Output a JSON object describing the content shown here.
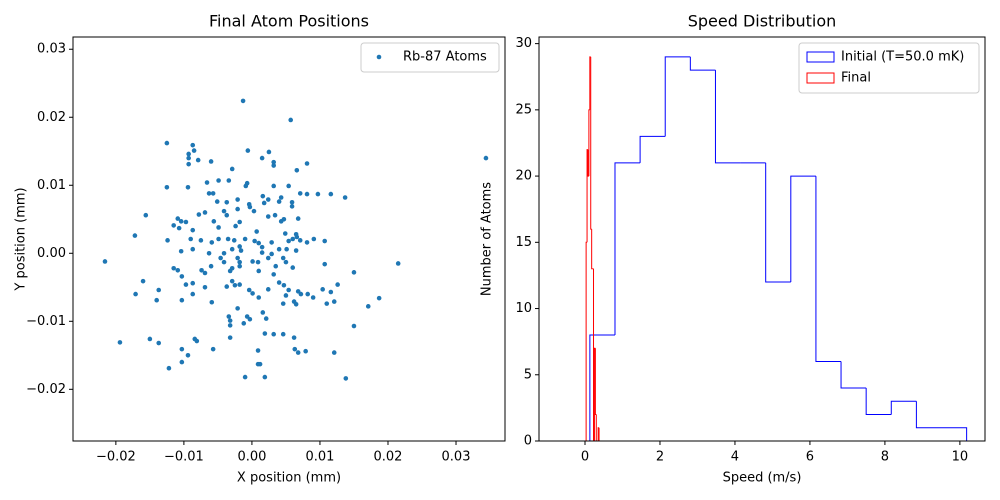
{
  "chart_data": [
    {
      "type": "scatter",
      "title": "Final Atom Positions",
      "xlabel": "X position (mm)",
      "ylabel": "Y position (mm)",
      "xlim": [
        -0.0263,
        0.0372
      ],
      "ylim": [
        -0.0276,
        0.0318
      ],
      "xticks": [
        {
          "value": -0.02,
          "label": "−0.02"
        },
        {
          "value": -0.01,
          "label": "−0.01"
        },
        {
          "value": 0,
          "label": "0.00"
        },
        0.01,
        0.02,
        0.03
      ],
      "yticks": [
        {
          "value": -0.02,
          "label": "−0.02"
        },
        {
          "value": -0.01,
          "label": "−0.01"
        },
        {
          "value": 0,
          "label": "0.00"
        },
        0.01,
        0.02,
        0.03
      ],
      "legend": "upper right",
      "series": [
        {
          "name": "Rb-87 Atoms",
          "color": "#1f77b4",
          "x": [
            -0.0013,
            0.0057,
            -0.0125,
            -0.0087,
            -0.0085,
            -0.0006,
            0.0025,
            -0.0093,
            -0.0093,
            -0.0093,
            0.0344,
            -0.0079,
            -0.006,
            0.0015,
            0.0032,
            0.0032,
            0.0081,
            -0.0029,
            0.0066,
            -0.0049,
            -0.0066,
            -0.0034,
            -0.0007,
            -0.0009,
            -0.0125,
            -0.0094,
            0.0032,
            0.0054,
            -0.0063,
            -0.0057,
            0.0016,
            0.0071,
            0.0081,
            0.0097,
            0.0116,
            0.0137,
            0.0043,
            0.004,
            0.0059,
            -0.0051,
            -0.0037,
            -0.0021,
            -0.0004,
            -0.0003,
            0.0024,
            0.0018,
            0.0059,
            -0.0156,
            -0.0069,
            -0.0078,
            -0.0041,
            -0.0021,
            0.0003,
            -0.0037,
            0.0024,
            0.0034,
            0.0047,
            0.0043,
            0.0068,
            -0.0109,
            -0.0104,
            -0.0097,
            -0.0056,
            -0.0018,
            -0.0024,
            0.0007,
            -0.0115,
            -0.0107,
            -0.0087,
            -0.0049,
            0.0049,
            0.0065,
            0.0066,
            -0.0172,
            -0.0124,
            -0.009,
            -0.0075,
            -0.0059,
            -0.0049,
            -0.0035,
            -0.0026,
            -0.001,
            0.0004,
            0.001,
            0.0029,
            0.0054,
            0.006,
            0.0071,
            0.0081,
            0.0091,
            0.0107,
            -0.0018,
            -0.0016,
            -0.0104,
            -0.0087,
            -0.0063,
            -0.0041,
            -0.0029,
            0.0015,
            0.0015,
            0.004,
            0.0029,
            0.0051,
            0.0065,
            -0.0216,
            0.0215,
            -0.0046,
            -0.0041,
            -0.0021,
            -0.0018,
            0.0001,
            0.0009,
            0.0024,
            0.0046,
            0.005,
            0.0107,
            -0.006,
            -0.0029,
            -0.0032,
            -0.0018,
            0.0035,
            0.006,
            -0.0115,
            -0.0109,
            -0.0074,
            -0.0069,
            0.001,
            0.015,
            -0.0103,
            0.0032,
            -0.016,
            -0.0029,
            -0.0025,
            -0.0097,
            -0.0087,
            -0.0069,
            -0.0037,
            -0.0018,
            0.004,
            0.0047,
            0.0126,
            -0.0137,
            -0.0004,
            0.0024,
            0.0054,
            0.0068,
            0.0104,
            0.0116,
            -0.0171,
            -0.0087,
            0.0001,
            0.005,
            0.0072,
            0.0082,
            0.009,
            0.0187,
            -0.014,
            -0.0103,
            0.001,
            0.0062,
            0.0065,
            0.011,
            0.0121,
            -0.0059,
            0.0046,
            0.0171,
            -0.0021,
            0.0016,
            -0.0034,
            -0.0007,
            -0.0003,
            0.0021,
            -0.0032,
            -0.0032,
            -0.0012,
            0.015,
            0.0019,
            0.0032,
            0.0046,
            -0.015,
            -0.0084,
            -0.0081,
            -0.0032,
            0.0062,
            -0.0194,
            -0.0137,
            -0.0103,
            -0.0057,
            0.0009,
            0.0063,
            0.0068,
            0.0079,
            0.0121,
            -0.0094,
            -0.0103,
            0.0009,
            0.0012,
            -0.0122,
            -0.001,
            0.0019,
            0.0138
          ],
          "values": [
            0.0224,
            0.0196,
            0.0162,
            0.0159,
            0.0151,
            0.0151,
            0.0149,
            0.0146,
            0.014,
            0.0131,
            0.014,
            0.0137,
            0.0135,
            0.014,
            0.0134,
            0.0129,
            0.0132,
            0.0124,
            0.0122,
            0.0107,
            0.0104,
            0.0107,
            0.0103,
            0.0099,
            0.0097,
            0.0097,
            0.0099,
            0.0099,
            0.0088,
            0.0088,
            0.0084,
            0.0088,
            0.0087,
            0.0087,
            0.0087,
            0.0082,
            0.0082,
            0.0076,
            0.0075,
            0.0076,
            0.0075,
            0.0079,
            0.0072,
            0.0068,
            0.0079,
            0.0074,
            0.0069,
            0.0056,
            0.006,
            0.0057,
            0.0062,
            0.0065,
            0.0062,
            0.0056,
            0.0054,
            0.0056,
            0.005,
            0.0047,
            0.0051,
            0.0051,
            0.0047,
            0.0046,
            0.0047,
            0.0046,
            0.004,
            0.0032,
            0.0041,
            0.0037,
            0.0034,
            0.0038,
            0.0029,
            0.0028,
            0.0024,
            0.0026,
            0.0019,
            0.0021,
            0.0019,
            0.0016,
            0.0021,
            0.0021,
            0.0019,
            0.0021,
            0.0018,
            0.0015,
            0.0016,
            0.0018,
            0.0021,
            0.0019,
            0.0016,
            0.0021,
            0.0018,
            0.001,
            0.0004,
            0.0003,
            0.0006,
            0,
            0,
            0.0006,
            0.0009,
            0.0001,
            0.0006,
            -0.0001,
            0.0006,
            0.0004,
            -0.0012,
            -0.0015,
            -0.0007,
            -0.0013,
            -0.0007,
            -0.0013,
            -0.0012,
            -0.0013,
            -0.0007,
            -0.0007,
            -0.0013,
            -0.0016,
            -0.0019,
            -0.0022,
            -0.0026,
            -0.0019,
            -0.0019,
            -0.0021,
            -0.0022,
            -0.0025,
            -0.0025,
            -0.0029,
            -0.0026,
            -0.0028,
            -0.0034,
            -0.0031,
            -0.0041,
            -0.0041,
            -0.0047,
            -0.0046,
            -0.0044,
            -0.005,
            -0.0049,
            -0.0046,
            -0.0043,
            -0.0047,
            -0.0046,
            -0.0054,
            -0.0054,
            -0.0053,
            -0.0054,
            -0.0056,
            -0.0053,
            -0.0057,
            -0.006,
            -0.006,
            -0.0059,
            -0.0062,
            -0.006,
            -0.006,
            -0.0065,
            -0.0066,
            -0.0069,
            -0.0069,
            -0.0065,
            -0.0071,
            -0.0075,
            -0.0074,
            -0.0071,
            -0.0072,
            -0.0074,
            -0.0078,
            -0.0081,
            -0.0087,
            -0.0093,
            -0.0093,
            -0.0097,
            -0.0096,
            -0.0099,
            -0.0106,
            -0.0103,
            -0.0107,
            -0.0118,
            -0.0119,
            -0.0119,
            -0.0126,
            -0.0126,
            -0.0129,
            -0.0124,
            -0.0124,
            -0.0131,
            -0.0132,
            -0.0141,
            -0.0141,
            -0.0143,
            -0.0141,
            -0.0146,
            -0.0144,
            -0.0146,
            -0.015,
            -0.016,
            -0.0163,
            -0.0163,
            -0.0169,
            -0.0182,
            -0.0182,
            -0.0184
          ]
        }
      ]
    },
    {
      "type": "histogram",
      "title": "Speed Distribution",
      "xlabel": "Speed (m/s)",
      "ylabel": "Number of Atoms",
      "xlim": [
        -1.227,
        10.67
      ],
      "ylim": [
        0,
        30.5
      ],
      "xticks": [
        0,
        2,
        4,
        6,
        8,
        10
      ],
      "yticks": [
        0,
        5,
        10,
        15,
        20,
        25,
        30
      ],
      "legend": "upper right",
      "series": [
        {
          "name": "Initial (T=50.0 mK)",
          "color": "#0000ff",
          "bins": [
            0.13,
            0.8,
            1.47,
            2.14,
            2.81,
            3.48,
            4.15,
            4.82,
            5.49,
            6.16,
            6.83,
            7.5,
            8.17,
            8.84,
            9.51,
            10.18
          ],
          "values": [
            8,
            21,
            23,
            29,
            28,
            21,
            21,
            12,
            20,
            6,
            4,
            2,
            3,
            1,
            1
          ]
        },
        {
          "name": "Final",
          "color": "#ff0000",
          "bins": [
            0.03,
            0.055,
            0.079,
            0.104,
            0.129,
            0.153,
            0.178,
            0.203,
            0.227,
            0.252,
            0.277,
            0.301,
            0.326,
            0.351,
            0.375,
            0.4
          ],
          "values": [
            15,
            22,
            20,
            25,
            29,
            16,
            13,
            13,
            0,
            7,
            2,
            0,
            0,
            1,
            0
          ]
        }
      ]
    }
  ]
}
